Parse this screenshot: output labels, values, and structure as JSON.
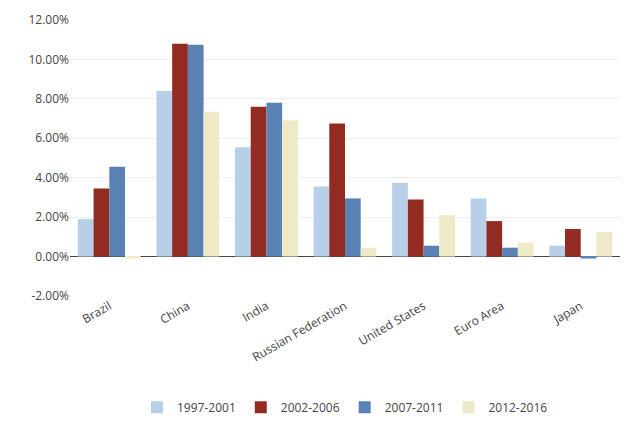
{
  "chart_data": {
    "type": "bar",
    "categories": [
      "Brazil",
      "China",
      "India",
      "Russian Federation",
      "United States",
      "Euro Area",
      "Japan"
    ],
    "series": [
      {
        "name": "1997-2001",
        "color": "#b8cfe8",
        "values": [
          1.9,
          8.4,
          5.55,
          3.55,
          3.75,
          2.95,
          0.55
        ]
      },
      {
        "name": "2002-2006",
        "color": "#922b21",
        "values": [
          3.45,
          10.8,
          7.6,
          6.75,
          2.9,
          1.8,
          1.4
        ]
      },
      {
        "name": "2007-2011",
        "color": "#5b82b5",
        "values": [
          4.55,
          10.75,
          7.8,
          2.95,
          0.55,
          0.45,
          -0.1
        ]
      },
      {
        "name": "2012-2016",
        "color": "#eeeac8",
        "values": [
          -0.1,
          7.35,
          6.9,
          0.45,
          2.1,
          0.7,
          1.25
        ]
      }
    ],
    "ylim": [
      -2.0,
      12.0
    ],
    "yticks": [
      {
        "value": -2.0,
        "label": "-2.00%"
      },
      {
        "value": 0.0,
        "label": "0.00%"
      },
      {
        "value": 2.0,
        "label": "2.00%"
      },
      {
        "value": 4.0,
        "label": "4.00%"
      },
      {
        "value": 6.0,
        "label": "6.00%"
      },
      {
        "value": 8.0,
        "label": "8.00%"
      },
      {
        "value": 10.0,
        "label": "10.00%"
      },
      {
        "value": 12.0,
        "label": "12.00%"
      }
    ],
    "grid": true,
    "legend": "bottom"
  }
}
